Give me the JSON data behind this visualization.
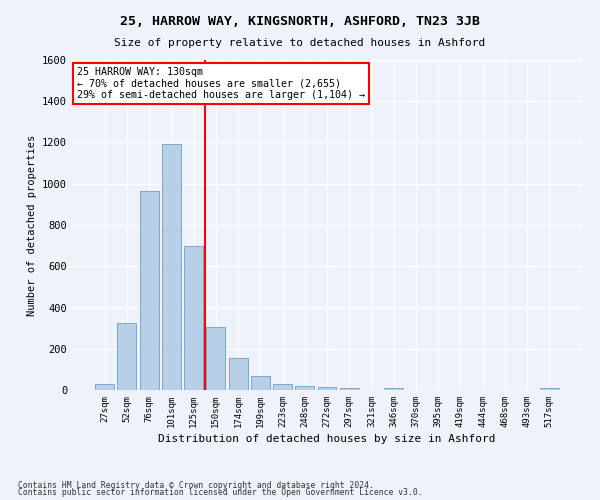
{
  "title": "25, HARROW WAY, KINGSNORTH, ASHFORD, TN23 3JB",
  "subtitle": "Size of property relative to detached houses in Ashford",
  "xlabel": "Distribution of detached houses by size in Ashford",
  "ylabel": "Number of detached properties",
  "categories": [
    "27sqm",
    "52sqm",
    "76sqm",
    "101sqm",
    "125sqm",
    "150sqm",
    "174sqm",
    "199sqm",
    "223sqm",
    "248sqm",
    "272sqm",
    "297sqm",
    "321sqm",
    "346sqm",
    "370sqm",
    "395sqm",
    "419sqm",
    "444sqm",
    "468sqm",
    "493sqm",
    "517sqm"
  ],
  "values": [
    30,
    325,
    965,
    1195,
    700,
    305,
    155,
    70,
    28,
    18,
    13,
    10,
    0,
    12,
    0,
    0,
    0,
    0,
    0,
    0,
    12
  ],
  "bar_color": "#b8cfe8",
  "bar_edgecolor": "#6fa0c8",
  "background_color": "#eef2fa",
  "grid_color": "#ffffff",
  "vline_x": 4.5,
  "vline_color": "red",
  "annotation_text": "25 HARROW WAY: 130sqm\n← 70% of detached houses are smaller (2,655)\n29% of semi-detached houses are larger (1,104) →",
  "annotation_box_color": "white",
  "annotation_box_edgecolor": "red",
  "ylim": [
    0,
    1600
  ],
  "yticks": [
    0,
    200,
    400,
    600,
    800,
    1000,
    1200,
    1400,
    1600
  ],
  "footnote1": "Contains HM Land Registry data © Crown copyright and database right 2024.",
  "footnote2": "Contains public sector information licensed under the Open Government Licence v3.0."
}
